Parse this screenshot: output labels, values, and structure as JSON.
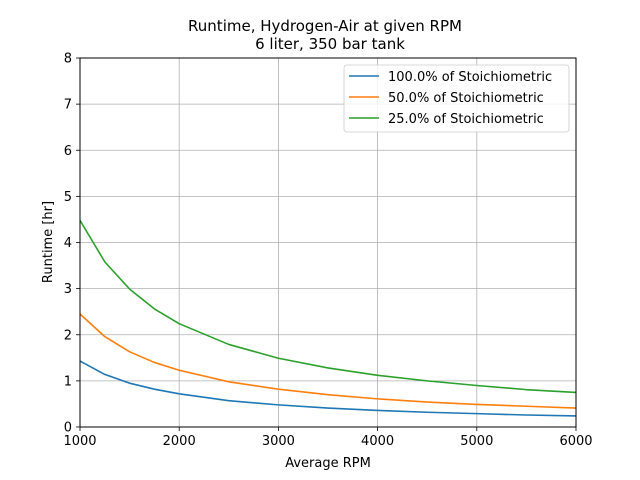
{
  "chart_data": {
    "type": "line",
    "title": "Runtime, Hydrogen-Air at given RPM",
    "subtitle": "6 liter, 350 bar tank",
    "xlabel": "Average RPM",
    "ylabel": "Runtime [hr]",
    "xlim": [
      1000,
      6000
    ],
    "ylim": [
      0,
      8
    ],
    "xticks": [
      "1000",
      "2000",
      "3000",
      "4000",
      "5000",
      "6000"
    ],
    "yticks": [
      "0",
      "1",
      "2",
      "3",
      "4",
      "5",
      "6",
      "7",
      "8"
    ],
    "grid": true,
    "legend_position": "top-right",
    "x": [
      1000,
      1250,
      1500,
      1750,
      2000,
      2500,
      3000,
      3500,
      4000,
      4500,
      5000,
      5500,
      6000
    ],
    "series": [
      {
        "name": "100.0% of Stoichiometric",
        "color": "#1f77b4",
        "values": [
          1.43,
          1.14,
          0.95,
          0.82,
          0.72,
          0.57,
          0.48,
          0.41,
          0.36,
          0.32,
          0.29,
          0.26,
          0.24
        ]
      },
      {
        "name": "50.0% of Stoichiometric",
        "color": "#ff7f0e",
        "values": [
          2.45,
          1.96,
          1.63,
          1.4,
          1.23,
          0.98,
          0.82,
          0.7,
          0.61,
          0.54,
          0.49,
          0.45,
          0.41
        ]
      },
      {
        "name": "25.0% of Stoichiometric",
        "color": "#2ca02c",
        "values": [
          4.48,
          3.58,
          2.99,
          2.56,
          2.24,
          1.79,
          1.49,
          1.28,
          1.12,
          1.0,
          0.9,
          0.81,
          0.75
        ]
      }
    ]
  }
}
